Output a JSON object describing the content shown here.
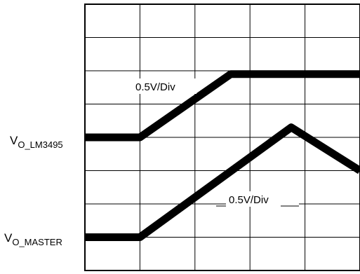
{
  "chart_data": {
    "type": "line",
    "grid": true,
    "grid_divisions": {
      "x": 5,
      "y": 8
    },
    "x_range_div": [
      0,
      5
    ],
    "y_range_div": [
      0,
      8
    ],
    "series": [
      {
        "name": "VO_LM3495",
        "label_main": "V",
        "label_sub": "O_LM3495",
        "scale": "0.5V/Div",
        "color": "#000000",
        "points": [
          [
            0,
            4.0
          ],
          [
            1.0,
            4.0
          ],
          [
            2.65,
            5.9
          ],
          [
            5.0,
            5.9
          ]
        ]
      },
      {
        "name": "VO_MASTER",
        "label_main": "V",
        "label_sub": "O_MASTER",
        "scale": "0.5V/Div",
        "color": "#000000",
        "points": [
          [
            0,
            1.0
          ],
          [
            1.0,
            1.0
          ],
          [
            3.75,
            4.3
          ],
          [
            5.0,
            3.0
          ]
        ]
      }
    ]
  }
}
